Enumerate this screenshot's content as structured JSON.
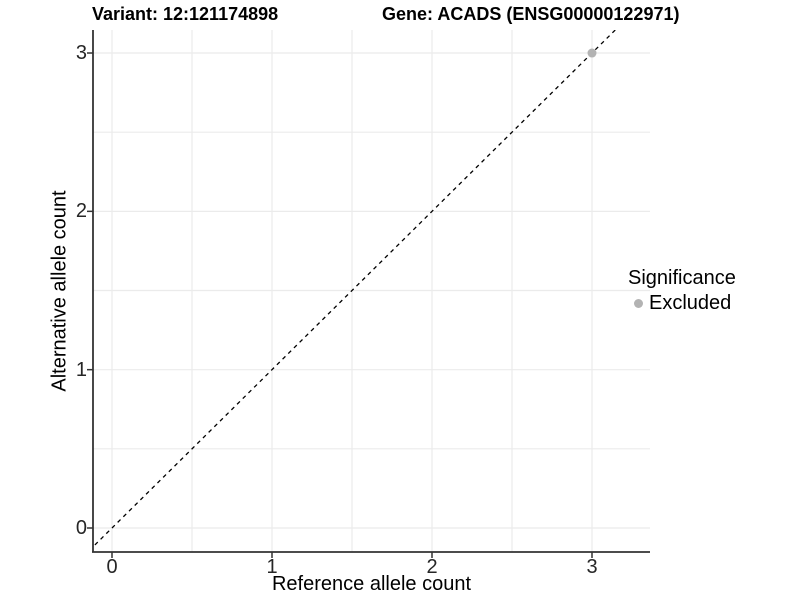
{
  "header": {
    "variant_title": "Variant: 12:121174898",
    "gene_title": "Gene: ACADS (ENSG00000122971)"
  },
  "chart_data": {
    "type": "scatter",
    "titles": [
      "Variant: 12:121174898",
      "Gene: ACADS (ENSG00000122971)"
    ],
    "xlabel": "Reference allele count",
    "ylabel": "Alternative allele count",
    "xlim": [
      -0.12,
      3.36
    ],
    "ylim": [
      -0.15,
      3.15
    ],
    "x_ticks": [
      0,
      1,
      2,
      3
    ],
    "y_ticks": [
      0,
      1,
      2,
      3
    ],
    "x_minor_ticks": [
      0.5,
      1.5,
      2.5
    ],
    "y_minor_ticks": [
      0.5,
      1.5,
      2.5
    ],
    "grid": "on",
    "background_color": "#ffffff",
    "grid_color": "#ebebeb",
    "axis_color": "#333333",
    "tick_label_color": "#262626",
    "reference_line": {
      "type": "identity (y = x)",
      "style": "dashed",
      "color": "#000000"
    },
    "series": [
      {
        "name": "Excluded",
        "color": "#b3b3b3",
        "points": [
          {
            "x": 3,
            "y": 3
          }
        ]
      }
    ],
    "legend": {
      "title": "Significance",
      "position": "right",
      "items": [
        {
          "label": "Excluded",
          "color": "#b3b3b3"
        }
      ]
    }
  }
}
